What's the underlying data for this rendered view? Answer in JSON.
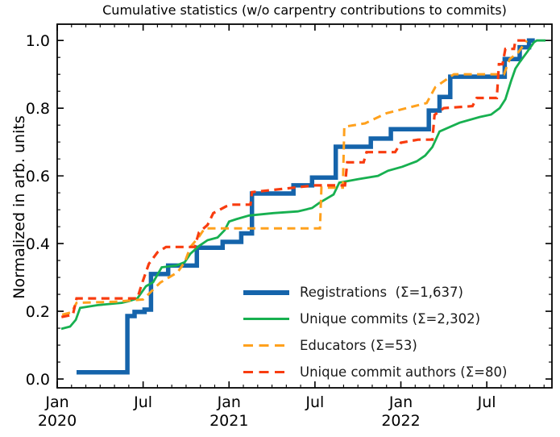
{
  "colors": {
    "background": "#ffffff",
    "axis": "#000000",
    "text": "#000000",
    "registrations_blue": "#1564ab",
    "commits_green": "#17b050",
    "educators_orange": "#ffa11d",
    "authors_red": "#f83c0f"
  },
  "chart_data": {
    "type": "line",
    "title": "Cumulative statistics (w/o carpentry contributions to commits)",
    "xlabel": "",
    "ylabel": "Normalized in arb. units",
    "grid": false,
    "legend_position": "lower right",
    "x_axis": {
      "unit": "months since 2020-01",
      "range": [
        0,
        34.55
      ],
      "major_ticks": [
        {
          "pos": 0,
          "label": "Jan",
          "year": "2020"
        },
        {
          "pos": 6,
          "label": "Jul",
          "year": ""
        },
        {
          "pos": 12,
          "label": "Jan",
          "year": "2021"
        },
        {
          "pos": 18,
          "label": "Jul",
          "year": ""
        },
        {
          "pos": 24,
          "label": "Jan",
          "year": "2022"
        },
        {
          "pos": 30,
          "label": "Jul",
          "year": ""
        }
      ],
      "minor_tick_every_months": 1
    },
    "y_axis": {
      "range": [
        -0.026,
        1.048
      ],
      "major_ticks": [
        0.0,
        0.2,
        0.4,
        0.6,
        0.8,
        1.0
      ],
      "minor_tick_every": 0.05
    },
    "series": [
      {
        "name": "Registrations",
        "legend_label": "Registrations  (Σ=1,637)",
        "total": 1637,
        "color": "#1564ab",
        "style": "solid",
        "line_width": 5.5,
        "points": [
          [
            1.35,
            0.02
          ],
          [
            4.9,
            0.02
          ],
          [
            4.9,
            0.186
          ],
          [
            5.4,
            0.186
          ],
          [
            5.4,
            0.198
          ],
          [
            6.1,
            0.198
          ],
          [
            6.1,
            0.205
          ],
          [
            6.55,
            0.205
          ],
          [
            6.55,
            0.31
          ],
          [
            7.75,
            0.31
          ],
          [
            7.75,
            0.335
          ],
          [
            9.75,
            0.335
          ],
          [
            9.75,
            0.388
          ],
          [
            11.55,
            0.388
          ],
          [
            11.55,
            0.405
          ],
          [
            12.85,
            0.405
          ],
          [
            12.85,
            0.43
          ],
          [
            13.6,
            0.43
          ],
          [
            13.6,
            0.548
          ],
          [
            16.5,
            0.548
          ],
          [
            16.5,
            0.572
          ],
          [
            17.8,
            0.572
          ],
          [
            17.8,
            0.595
          ],
          [
            19.45,
            0.595
          ],
          [
            19.45,
            0.686
          ],
          [
            21.9,
            0.686
          ],
          [
            21.9,
            0.71
          ],
          [
            23.3,
            0.71
          ],
          [
            23.3,
            0.738
          ],
          [
            25.95,
            0.738
          ],
          [
            25.95,
            0.793
          ],
          [
            26.7,
            0.793
          ],
          [
            26.7,
            0.833
          ],
          [
            27.45,
            0.833
          ],
          [
            27.45,
            0.893
          ],
          [
            31.25,
            0.893
          ],
          [
            31.25,
            0.945
          ],
          [
            32.3,
            0.945
          ],
          [
            32.3,
            0.98
          ],
          [
            32.95,
            0.98
          ],
          [
            32.95,
            1.0
          ],
          [
            33.35,
            1.0
          ]
        ]
      },
      {
        "name": "Unique commits",
        "legend_label": "Unique commits (Σ=2,302)",
        "total": 2302,
        "color": "#17b050",
        "style": "solid",
        "line_width": 2.8,
        "points": [
          [
            0.28,
            0.148
          ],
          [
            0.9,
            0.155
          ],
          [
            1.3,
            0.175
          ],
          [
            1.6,
            0.21
          ],
          [
            2.8,
            0.218
          ],
          [
            4.5,
            0.225
          ],
          [
            5.0,
            0.23
          ],
          [
            5.6,
            0.238
          ],
          [
            6.2,
            0.274
          ],
          [
            6.7,
            0.286
          ],
          [
            7.3,
            0.33
          ],
          [
            8.3,
            0.335
          ],
          [
            8.9,
            0.345
          ],
          [
            9.3,
            0.37
          ],
          [
            9.9,
            0.393
          ],
          [
            10.5,
            0.41
          ],
          [
            11.2,
            0.418
          ],
          [
            11.7,
            0.44
          ],
          [
            12.0,
            0.465
          ],
          [
            12.5,
            0.472
          ],
          [
            13.4,
            0.483
          ],
          [
            15.1,
            0.49
          ],
          [
            16.8,
            0.495
          ],
          [
            17.8,
            0.505
          ],
          [
            18.3,
            0.52
          ],
          [
            19.3,
            0.545
          ],
          [
            19.7,
            0.58
          ],
          [
            21.0,
            0.59
          ],
          [
            22.4,
            0.6
          ],
          [
            23.1,
            0.615
          ],
          [
            24.1,
            0.627
          ],
          [
            25.1,
            0.643
          ],
          [
            25.7,
            0.66
          ],
          [
            26.2,
            0.685
          ],
          [
            26.7,
            0.731
          ],
          [
            28.1,
            0.757
          ],
          [
            29.5,
            0.774
          ],
          [
            30.3,
            0.781
          ],
          [
            30.9,
            0.8
          ],
          [
            31.3,
            0.826
          ],
          [
            31.7,
            0.881
          ],
          [
            32.0,
            0.917
          ],
          [
            32.3,
            0.936
          ],
          [
            32.8,
            0.965
          ],
          [
            33.3,
            0.995
          ],
          [
            33.5,
            1.0
          ],
          [
            34.1,
            1.0
          ]
        ]
      },
      {
        "name": "Educators",
        "legend_label": "Educators (Σ=53)",
        "total": 53,
        "color": "#ffa11d",
        "style": "dashed",
        "line_width": 3.0,
        "points": [
          [
            0.35,
            0.19
          ],
          [
            1.0,
            0.197
          ],
          [
            1.35,
            0.225
          ],
          [
            4.0,
            0.228
          ],
          [
            6.0,
            0.235
          ],
          [
            6.6,
            0.26
          ],
          [
            7.2,
            0.285
          ],
          [
            8.4,
            0.315
          ],
          [
            8.9,
            0.345
          ],
          [
            9.3,
            0.39
          ],
          [
            9.9,
            0.42
          ],
          [
            10.3,
            0.445
          ],
          [
            18.35,
            0.445
          ],
          [
            18.45,
            0.565
          ],
          [
            19.95,
            0.565
          ],
          [
            20.05,
            0.745
          ],
          [
            21.5,
            0.755
          ],
          [
            23.0,
            0.785
          ],
          [
            25.8,
            0.815
          ],
          [
            26.4,
            0.862
          ],
          [
            27.7,
            0.9
          ],
          [
            31.2,
            0.9
          ],
          [
            31.6,
            0.945
          ],
          [
            32.2,
            0.965
          ],
          [
            32.8,
            1.0
          ]
        ]
      },
      {
        "name": "Unique commit authors",
        "legend_label": "Unique commit authors (Σ=80)",
        "total": 80,
        "color": "#f83c0f",
        "style": "dashed",
        "line_width": 3.2,
        "points": [
          [
            0.3,
            0.183
          ],
          [
            1.1,
            0.19
          ],
          [
            1.35,
            0.238
          ],
          [
            5.6,
            0.238
          ],
          [
            5.9,
            0.28
          ],
          [
            6.4,
            0.34
          ],
          [
            7.0,
            0.374
          ],
          [
            7.6,
            0.39
          ],
          [
            9.6,
            0.39
          ],
          [
            9.9,
            0.433
          ],
          [
            10.5,
            0.455
          ],
          [
            10.9,
            0.49
          ],
          [
            11.8,
            0.51
          ],
          [
            12.2,
            0.515
          ],
          [
            13.5,
            0.515
          ],
          [
            13.6,
            0.552
          ],
          [
            16.3,
            0.564
          ],
          [
            18.0,
            0.572
          ],
          [
            20.1,
            0.572
          ],
          [
            20.25,
            0.64
          ],
          [
            21.4,
            0.64
          ],
          [
            21.6,
            0.67
          ],
          [
            23.6,
            0.67
          ],
          [
            24.0,
            0.698
          ],
          [
            25.2,
            0.707
          ],
          [
            26.2,
            0.707
          ],
          [
            26.35,
            0.78
          ],
          [
            27.0,
            0.8
          ],
          [
            29.0,
            0.806
          ],
          [
            29.3,
            0.83
          ],
          [
            30.7,
            0.83
          ],
          [
            30.85,
            0.93
          ],
          [
            31.1,
            0.93
          ],
          [
            31.3,
            0.975
          ],
          [
            31.9,
            0.975
          ],
          [
            32.0,
            1.0
          ],
          [
            32.7,
            1.0
          ]
        ]
      }
    ]
  }
}
